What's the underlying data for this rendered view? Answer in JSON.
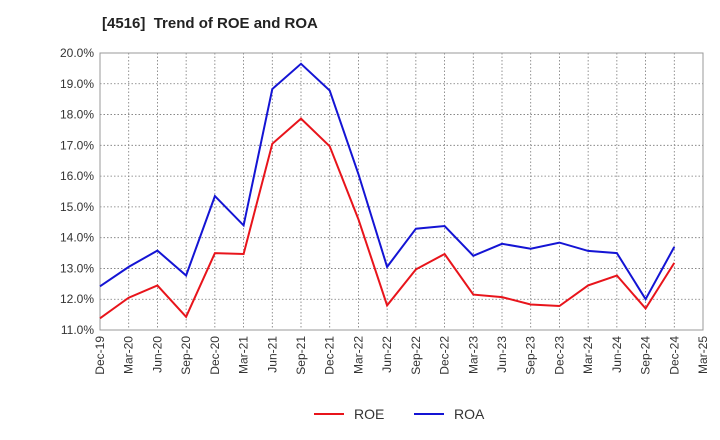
{
  "chart_data": {
    "type": "line",
    "title": "[4516]  Trend of ROE and ROA",
    "xlabel": "",
    "ylabel": "",
    "x": [
      "Dec-19",
      "Mar-20",
      "Jun-20",
      "Sep-20",
      "Dec-20",
      "Mar-21",
      "Jun-21",
      "Sep-21",
      "Dec-21",
      "Mar-22",
      "Jun-22",
      "Sep-22",
      "Dec-22",
      "Mar-23",
      "Jun-23",
      "Sep-23",
      "Dec-23",
      "Mar-24",
      "Jun-24",
      "Sep-24",
      "Dec-24",
      "Mar-25"
    ],
    "ylim": [
      11.0,
      20.0
    ],
    "yticks": [
      11.0,
      12.0,
      13.0,
      14.0,
      15.0,
      16.0,
      17.0,
      18.0,
      19.0,
      20.0
    ],
    "ytick_format": "%",
    "grid": true,
    "legend_position": "bottom-center",
    "series": [
      {
        "name": "ROE",
        "color": "#e8141b",
        "values": [
          11.38,
          12.05,
          12.45,
          11.43,
          13.5,
          13.47,
          17.05,
          17.87,
          16.97,
          14.6,
          11.8,
          12.97,
          13.47,
          12.15,
          12.07,
          11.83,
          11.78,
          12.45,
          12.77,
          11.7,
          13.18,
          null
        ]
      },
      {
        "name": "ROA",
        "color": "#1414d4",
        "values": [
          12.42,
          13.05,
          13.58,
          12.77,
          15.35,
          14.4,
          18.83,
          19.65,
          18.78,
          16.07,
          13.05,
          14.29,
          14.38,
          13.41,
          13.8,
          13.64,
          13.84,
          13.57,
          13.5,
          12.0,
          13.7,
          null
        ]
      }
    ]
  }
}
